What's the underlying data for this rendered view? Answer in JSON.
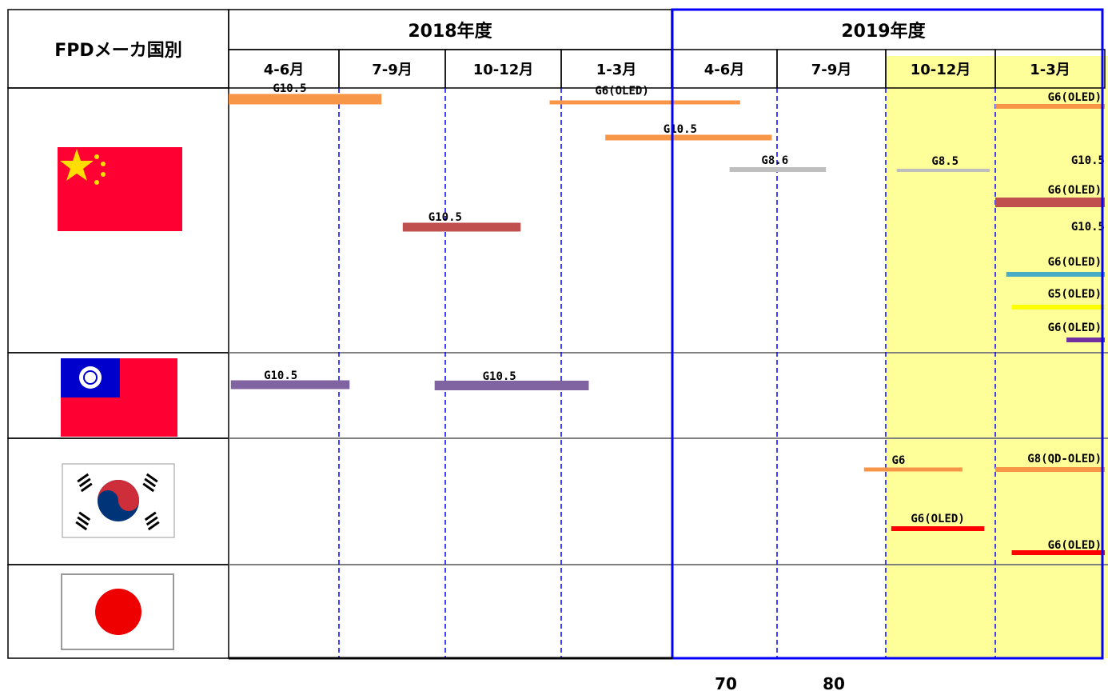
{
  "header": {
    "row_label": "FPDメーカ国別",
    "fiscal_years": [
      {
        "label": "2018年度"
      },
      {
        "label": "2019年度"
      }
    ],
    "quarters": [
      "4-6月",
      "7-9月",
      "10-12月",
      "1-3月",
      "4-6月",
      "7-9月",
      "10-12月",
      "1-3月"
    ]
  },
  "countries": [
    {
      "flag": "china-flag-icon"
    },
    {
      "flag": "taiwan-flag-icon"
    },
    {
      "flag": "korea-flag-icon"
    },
    {
      "flag": "japan-flag-icon"
    }
  ],
  "colors": {
    "orange": "#f79646",
    "gray": "#bfbfbf",
    "brick": "#c0504d",
    "purple": "#8064a2",
    "teal": "#4bacc6",
    "yellow": "#ffff00",
    "violet": "#7030a0",
    "red": "#ff0000",
    "highlight": "#ffff99",
    "blue_frame": "#0000ff",
    "dashed": "#0000ff"
  },
  "bars": [
    {
      "label": "G10.5",
      "color": "orange",
      "start": 0.0,
      "end": 1.4
    },
    {
      "label": "G6(OLED)",
      "color": "orange",
      "start": 2.9,
      "end": 4.65
    },
    {
      "label": "G10.5",
      "color": "orange",
      "start": 3.4,
      "end": 4.95
    },
    {
      "label": "G8.6",
      "color": "gray",
      "start": 4.55,
      "end": 5.45
    },
    {
      "label": "G8.5",
      "color": "gray",
      "start": 6.1,
      "end": 6.95
    },
    {
      "label": "G10.5",
      "color": "brick",
      "start": 1.6,
      "end": 2.65
    },
    {
      "label": "G6(OLED)",
      "color": "orange",
      "start": 7.0,
      "end": 8.0
    },
    {
      "label": "G10.5",
      "color": "purple",
      "start": 0.02,
      "end": 1.1
    },
    {
      "label": "G10.5",
      "color": "purple",
      "start": 1.9,
      "end": 3.25
    },
    {
      "label": "G6",
      "color": "orange",
      "start": 5.8,
      "end": 6.7
    },
    {
      "label": "G8(QD-OLED)",
      "color": "orange",
      "start": 7.0,
      "end": 8.0
    },
    {
      "label": "G6(OLED)",
      "color": "red",
      "start": 6.05,
      "end": 6.9
    },
    {
      "label": "G6(OLED)",
      "color": "red",
      "start": 7.15,
      "end": 8.0
    },
    {
      "label": "G6(OLED)",
      "color": "brick",
      "start": 7.0,
      "end": 8.0
    },
    {
      "label": "G6(OLED)",
      "color": "teal",
      "start": 7.1,
      "end": 8.0
    },
    {
      "label": "G5(OLED)",
      "color": "yellow",
      "start": 7.15,
      "end": 8.0
    },
    {
      "label": "G6(OLED)",
      "color": "violet",
      "start": 7.65,
      "end": 8.0
    },
    {
      "label": "G10.5",
      "color": "dashed",
      "start": 7.75,
      "end": 8.0
    },
    {
      "label": "G10.5",
      "color": "dashed",
      "start": 7.75,
      "end": 8.0
    }
  ],
  "below_numbers": [
    "70",
    "80"
  ]
}
